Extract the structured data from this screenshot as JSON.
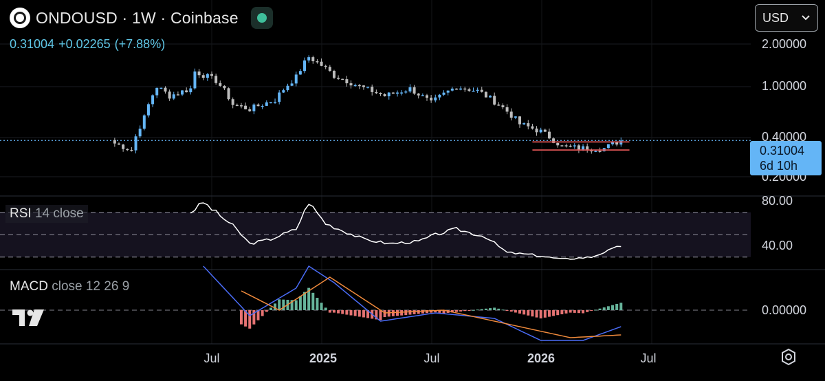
{
  "header": {
    "symbol_title": "ONDOUSD · 1W · Coinbase",
    "last_price": "0.31004",
    "change_abs": "+0.02265",
    "change_pct": "(+7.88%)"
  },
  "currency_button": {
    "label": "USD",
    "icon": "chevron-down-icon"
  },
  "price_tag": {
    "price": "0.31004",
    "countdown": "6d 10h"
  },
  "indicators": {
    "rsi": {
      "name": "RSI",
      "params": "14 close"
    },
    "macd": {
      "name": "MACD",
      "params": "close 12 26 9"
    }
  },
  "colors": {
    "background": "#000000",
    "up_candle": "#64b5f6",
    "down_candle": "#bdbdbd",
    "last_price_line": "#64b5f6",
    "range_lines": "#e05555",
    "rsi_line": "#ffffff",
    "macd_line": "#4a6cf7",
    "signal_line": "#f08a3c",
    "hist_positive": "#66b39a",
    "hist_negative": "#e57373"
  },
  "chart_data": [
    {
      "type": "candlestick",
      "symbol": "ONDOUSD",
      "interval": "1W",
      "scale": "log",
      "y_ticks": [
        "2.00000",
        "1.00000",
        "0.40000",
        "0.20000"
      ],
      "x_ticks": [
        "Jul",
        "2025",
        "Jul",
        "2026",
        "Jul"
      ],
      "ylim": [
        0.17,
        2.6
      ],
      "last": 0.31004,
      "range_high": 0.3,
      "range_low": 0.25,
      "approx_close_path": [
        {
          "date": "2024-01-22",
          "close": 0.29
        },
        {
          "date": "2024-02-19",
          "close": 0.25
        },
        {
          "date": "2024-03-11",
          "close": 0.52
        },
        {
          "date": "2024-04-01",
          "close": 1.05
        },
        {
          "date": "2024-04-22",
          "close": 0.85
        },
        {
          "date": "2024-05-27",
          "close": 1.0
        },
        {
          "date": "2024-06-03",
          "close": 1.48
        },
        {
          "date": "2024-07-08",
          "close": 1.2
        },
        {
          "date": "2024-08-05",
          "close": 0.7
        },
        {
          "date": "2024-09-02",
          "close": 0.63
        },
        {
          "date": "2024-10-14",
          "close": 0.78
        },
        {
          "date": "2024-11-18",
          "close": 1.3
        },
        {
          "date": "2024-12-09",
          "close": 2.05
        },
        {
          "date": "2025-01-20",
          "close": 1.35
        },
        {
          "date": "2025-03-03",
          "close": 1.05
        },
        {
          "date": "2025-04-14",
          "close": 0.85
        },
        {
          "date": "2025-05-26",
          "close": 1.0
        },
        {
          "date": "2025-06-30",
          "close": 0.72
        },
        {
          "date": "2025-08-11",
          "close": 1.05
        },
        {
          "date": "2025-09-15",
          "close": 0.95
        },
        {
          "date": "2025-10-20",
          "close": 0.7
        },
        {
          "date": "2025-11-24",
          "close": 0.45
        },
        {
          "date": "2025-12-29",
          "close": 0.38
        },
        {
          "date": "2026-02-02",
          "close": 0.27
        },
        {
          "date": "2026-03-09",
          "close": 0.26
        },
        {
          "date": "2026-04-13",
          "close": 0.26
        },
        {
          "date": "2026-05-11",
          "close": 0.31
        }
      ]
    },
    {
      "type": "line",
      "name": "RSI",
      "y_ticks": [
        "80.00",
        "40.00"
      ],
      "bands": [
        70,
        50,
        30
      ],
      "approx_path": [
        {
          "date": "2024-05-27",
          "value": 70
        },
        {
          "date": "2024-06-17",
          "value": 79
        },
        {
          "date": "2024-08-05",
          "value": 58
        },
        {
          "date": "2024-09-02",
          "value": 42
        },
        {
          "date": "2024-10-07",
          "value": 46
        },
        {
          "date": "2024-11-18",
          "value": 55
        },
        {
          "date": "2024-12-09",
          "value": 79
        },
        {
          "date": "2025-01-06",
          "value": 60
        },
        {
          "date": "2025-03-10",
          "value": 46
        },
        {
          "date": "2025-04-21",
          "value": 42
        },
        {
          "date": "2025-06-09",
          "value": 44
        },
        {
          "date": "2025-07-07",
          "value": 50
        },
        {
          "date": "2025-08-11",
          "value": 55
        },
        {
          "date": "2025-09-29",
          "value": 48
        },
        {
          "date": "2025-11-03",
          "value": 34
        },
        {
          "date": "2025-12-15",
          "value": 32
        },
        {
          "date": "2026-02-02",
          "value": 28
        },
        {
          "date": "2026-03-23",
          "value": 30
        },
        {
          "date": "2026-05-11",
          "value": 40
        }
      ]
    },
    {
      "type": "line",
      "name": "MACD",
      "y_ticks": [
        "0.00000"
      ],
      "series": [
        {
          "name": "MACD",
          "approx_path": [
            {
              "date": "2024-06-17",
              "value": 0.16
            },
            {
              "date": "2024-09-02",
              "value": -0.02
            },
            {
              "date": "2024-11-18",
              "value": 0.08
            },
            {
              "date": "2024-12-09",
              "value": 0.16
            },
            {
              "date": "2025-01-20",
              "value": 0.1
            },
            {
              "date": "2025-04-07",
              "value": -0.04
            },
            {
              "date": "2025-07-07",
              "value": -0.01
            },
            {
              "date": "2025-10-13",
              "value": -0.03
            },
            {
              "date": "2025-12-29",
              "value": -0.11
            },
            {
              "date": "2026-03-09",
              "value": -0.11
            },
            {
              "date": "2026-05-11",
              "value": -0.06
            }
          ]
        },
        {
          "name": "Signal",
          "approx_path": [
            {
              "date": "2024-08-19",
              "value": 0.07
            },
            {
              "date": "2024-10-21",
              "value": 0.0
            },
            {
              "date": "2025-01-13",
              "value": 0.12
            },
            {
              "date": "2025-04-14",
              "value": -0.01
            },
            {
              "date": "2025-07-21",
              "value": 0.0
            },
            {
              "date": "2025-11-03",
              "value": -0.05
            },
            {
              "date": "2026-02-16",
              "value": -0.1
            },
            {
              "date": "2026-05-11",
              "value": -0.09
            }
          ]
        }
      ]
    }
  ]
}
